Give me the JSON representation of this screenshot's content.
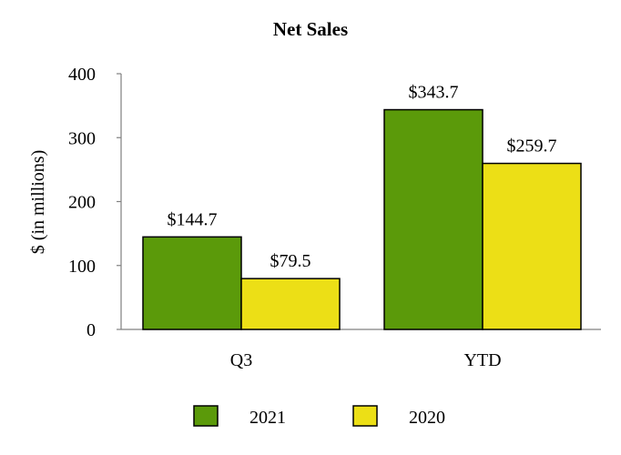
{
  "chart_data": {
    "type": "bar",
    "title": "Net Sales",
    "ylabel": "$ (in millions)",
    "xlabel": "",
    "categories": [
      "Q3",
      "YTD"
    ],
    "series": [
      {
        "name": "2021",
        "color": "#5b9a0a",
        "values": [
          144.7,
          343.7
        ],
        "labels": [
          "$144.7",
          "$343.7"
        ]
      },
      {
        "name": "2020",
        "color": "#ecdf16",
        "values": [
          79.5,
          259.7
        ],
        "labels": [
          "$79.5",
          "$259.7"
        ]
      }
    ],
    "ylim": [
      0,
      400
    ],
    "yticks": [
      0,
      100,
      200,
      300,
      400
    ],
    "grid": false,
    "legend_position": "bottom"
  }
}
